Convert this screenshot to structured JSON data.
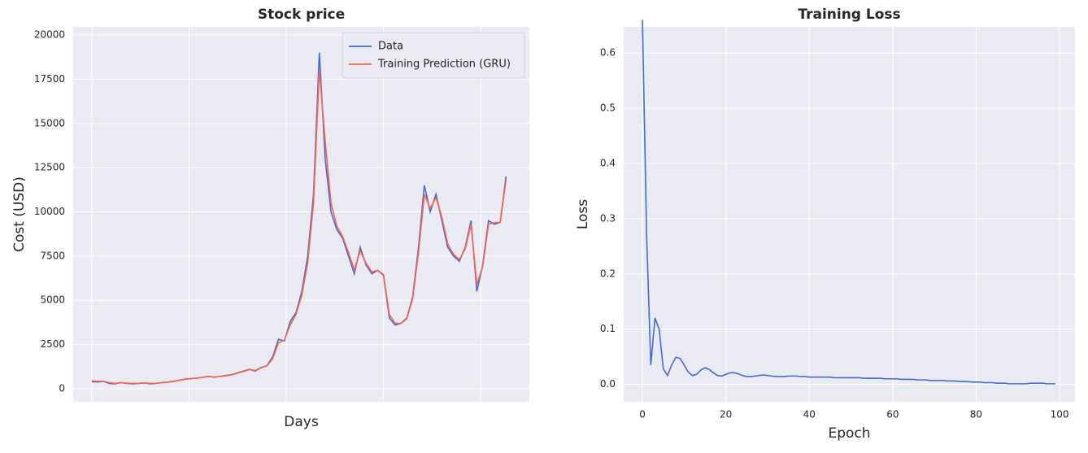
{
  "chart_data": [
    {
      "type": "line",
      "title": "Stock price",
      "xlabel": "Days",
      "ylabel": "Cost (USD)",
      "x": [
        0,
        15,
        30,
        45,
        60,
        75,
        90,
        105,
        120,
        135,
        150,
        165,
        180,
        195,
        210,
        225,
        240,
        255,
        270,
        285,
        300,
        315,
        330,
        345,
        360,
        375,
        390,
        405,
        420,
        435,
        450,
        465,
        480,
        495,
        510,
        525,
        540,
        555,
        570,
        585,
        600,
        615,
        630,
        645,
        660,
        675,
        690,
        705,
        720,
        735,
        750,
        765,
        780,
        795,
        810,
        825,
        840,
        855,
        870,
        885,
        900,
        915,
        930,
        945,
        960,
        975,
        990,
        1005,
        1020,
        1035,
        1050,
        1065
      ],
      "series": [
        {
          "name": "Data",
          "color": "#4169e1",
          "values": [
            400,
            380,
            420,
            300,
            280,
            350,
            300,
            280,
            300,
            330,
            280,
            300,
            350,
            380,
            420,
            480,
            550,
            580,
            600,
            650,
            700,
            650,
            700,
            750,
            800,
            900,
            1000,
            1100,
            1000,
            1200,
            1300,
            1800,
            2800,
            2700,
            3800,
            4300,
            5500,
            7500,
            11000,
            19000,
            13000,
            10000,
            9000,
            8500,
            7500,
            6500,
            8000,
            7000,
            6500,
            6700,
            6400,
            4000,
            3600,
            3700,
            4000,
            5200,
            8000,
            11500,
            10000,
            11000,
            9500,
            8000,
            7500,
            7200,
            8000,
            9500,
            5500,
            7000,
            9500,
            9300,
            9400,
            12000
          ]
        },
        {
          "name": "Training Prediction (GRU)",
          "color": "#ff6347",
          "values": [
            450,
            420,
            430,
            340,
            300,
            340,
            320,
            300,
            310,
            330,
            300,
            310,
            340,
            370,
            410,
            470,
            530,
            570,
            600,
            640,
            690,
            670,
            690,
            740,
            790,
            880,
            980,
            1080,
            1030,
            1180,
            1290,
            1700,
            2600,
            2750,
            3600,
            4200,
            5300,
            7100,
            10500,
            18000,
            14000,
            10500,
            9200,
            8600,
            7700,
            6700,
            7800,
            7100,
            6600,
            6700,
            6450,
            4200,
            3700,
            3700,
            3950,
            5100,
            7700,
            11000,
            10200,
            10800,
            9700,
            8200,
            7600,
            7300,
            7900,
            9300,
            5900,
            6900,
            9300,
            9400,
            9400,
            11800
          ]
        }
      ],
      "xlim": [
        -48,
        1125
      ],
      "xticks": [
        0,
        250,
        500,
        750,
        1000
      ],
      "ylim": [
        -736,
        20460
      ],
      "yticks": [
        0,
        2500,
        5000,
        7500,
        10000,
        12500,
        15000,
        17500,
        20000
      ],
      "grid": true,
      "legend": "upper right"
    },
    {
      "type": "line",
      "title": "Training Loss",
      "xlabel": "Epoch",
      "ylabel": "Loss",
      "x": [
        0,
        1,
        2,
        3,
        4,
        5,
        6,
        7,
        8,
        9,
        10,
        11,
        12,
        13,
        14,
        15,
        16,
        17,
        18,
        19,
        20,
        21,
        22,
        23,
        24,
        25,
        26,
        27,
        28,
        29,
        30,
        31,
        32,
        33,
        34,
        35,
        36,
        37,
        38,
        39,
        40,
        41,
        42,
        43,
        44,
        45,
        46,
        47,
        48,
        49,
        50,
        51,
        52,
        53,
        54,
        55,
        56,
        57,
        58,
        59,
        60,
        61,
        62,
        63,
        64,
        65,
        66,
        67,
        68,
        69,
        70,
        71,
        72,
        73,
        74,
        75,
        76,
        77,
        78,
        79,
        80,
        81,
        82,
        83,
        84,
        85,
        86,
        87,
        88,
        89,
        90,
        91,
        92,
        93,
        94,
        95,
        96,
        97,
        98,
        99
      ],
      "series": [
        {
          "name": "Loss",
          "color": "#4169e1",
          "values": [
            0.66,
            0.27,
            0.035,
            0.12,
            0.1,
            0.028,
            0.016,
            0.035,
            0.049,
            0.047,
            0.035,
            0.022,
            0.016,
            0.018,
            0.026,
            0.03,
            0.027,
            0.021,
            0.016,
            0.015,
            0.018,
            0.021,
            0.021,
            0.019,
            0.016,
            0.014,
            0.014,
            0.015,
            0.016,
            0.017,
            0.016,
            0.015,
            0.014,
            0.014,
            0.014,
            0.015,
            0.015,
            0.015,
            0.014,
            0.014,
            0.013,
            0.013,
            0.013,
            0.013,
            0.013,
            0.013,
            0.012,
            0.012,
            0.012,
            0.012,
            0.012,
            0.012,
            0.012,
            0.011,
            0.011,
            0.011,
            0.011,
            0.011,
            0.01,
            0.01,
            0.01,
            0.01,
            0.009,
            0.009,
            0.009,
            0.009,
            0.008,
            0.008,
            0.008,
            0.007,
            0.007,
            0.007,
            0.007,
            0.006,
            0.006,
            0.006,
            0.005,
            0.005,
            0.005,
            0.004,
            0.004,
            0.004,
            0.003,
            0.003,
            0.003,
            0.002,
            0.002,
            0.002,
            0.001,
            0.001,
            0.001,
            0.001,
            0.001,
            0.002,
            0.002,
            0.002,
            0.002,
            0.001,
            0.001,
            0.001
          ]
        }
      ],
      "xlim": [
        -4.5,
        103.7
      ],
      "xticks": [
        0,
        20,
        40,
        60,
        80,
        100
      ],
      "ylim": [
        -0.0316,
        0.6475
      ],
      "yticks": [
        {
          "value": 0,
          "label": "0.0"
        },
        0.1,
        0.2,
        0.3,
        0.4,
        0.5,
        0.6
      ],
      "grid": true
    }
  ]
}
